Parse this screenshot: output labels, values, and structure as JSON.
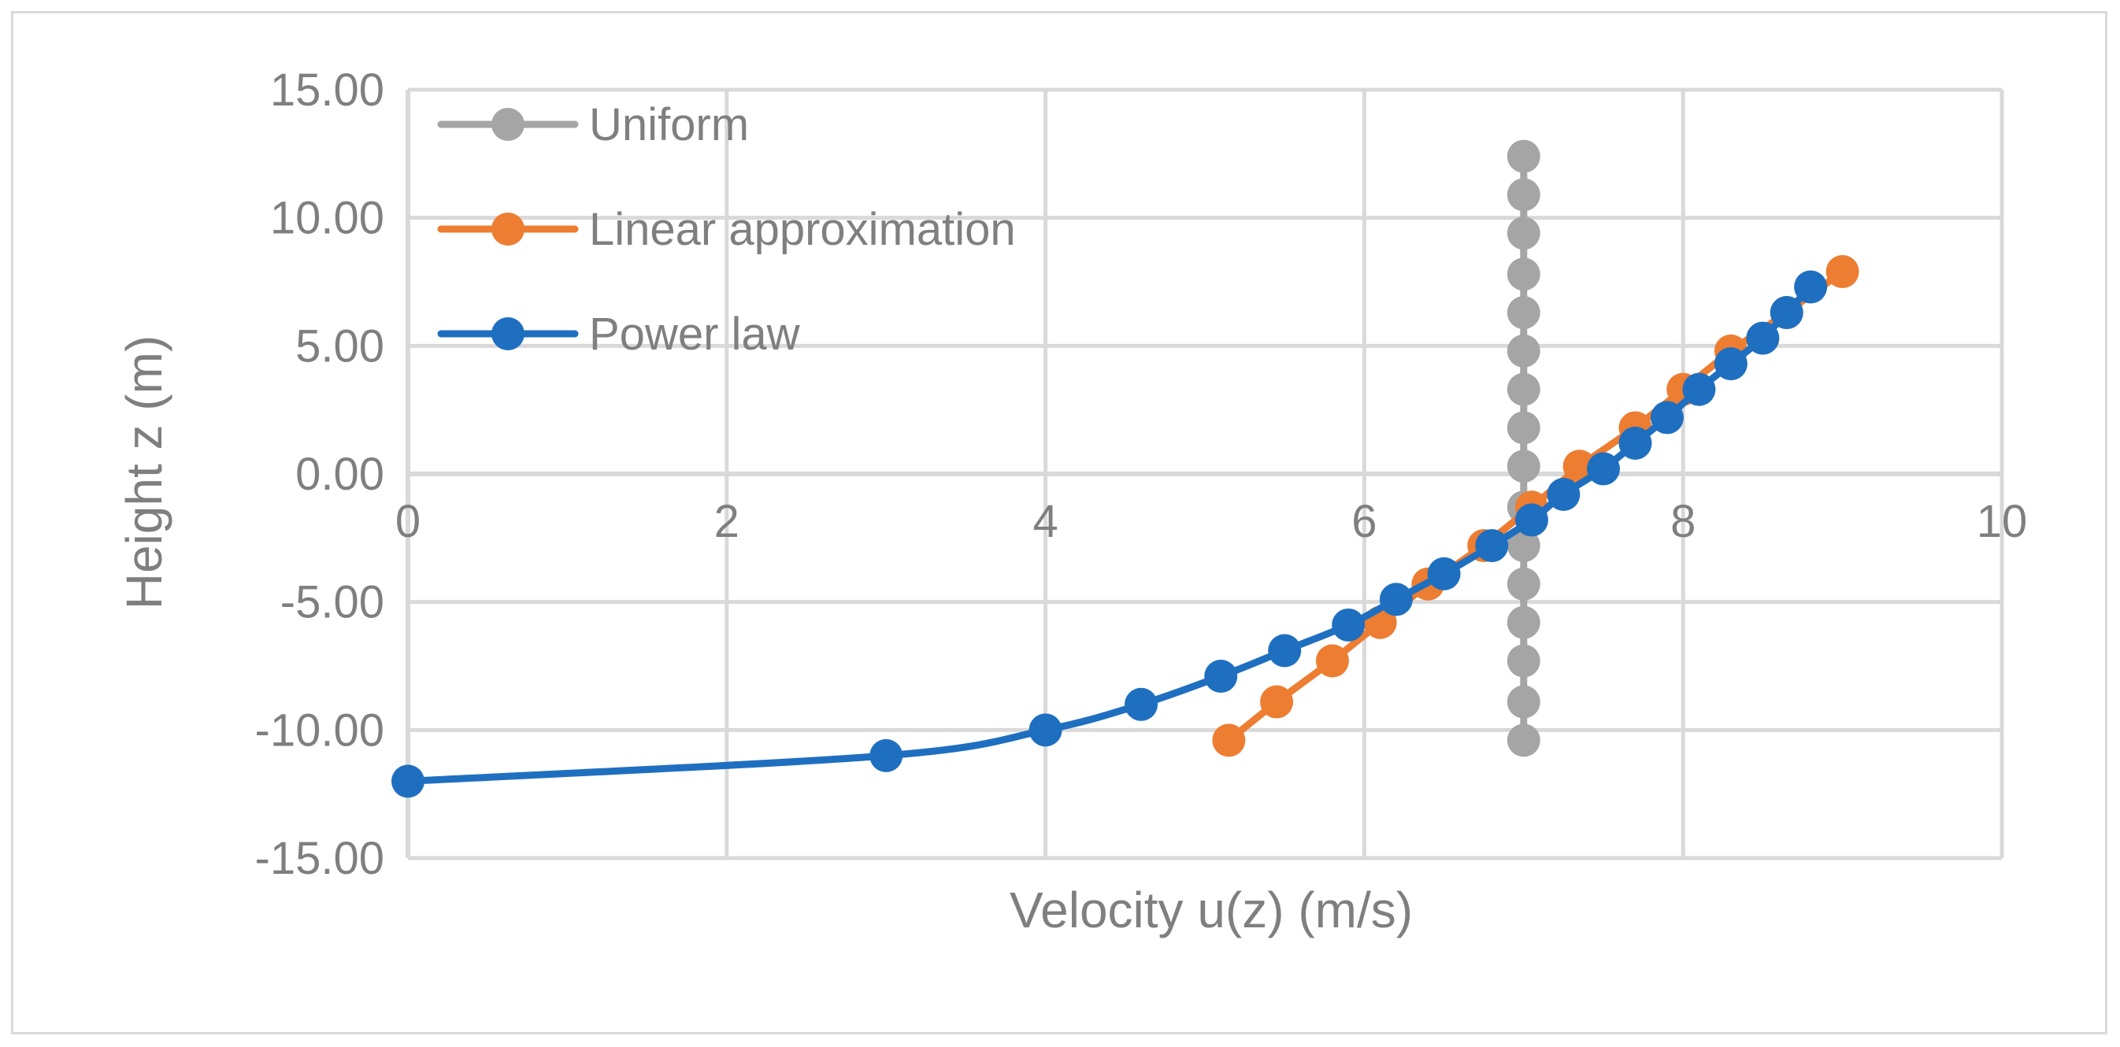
{
  "chart_data": {
    "type": "scatter",
    "title": "",
    "xlabel": "Velocity u(z) (m/s)",
    "ylabel": "Height z (m)",
    "xlim": [
      0,
      10
    ],
    "ylim": [
      -15,
      15
    ],
    "x_ticks": [
      "0",
      "2",
      "4",
      "6",
      "8",
      "10"
    ],
    "y_ticks": [
      "15.00",
      "10.00",
      "5.00",
      "0.00",
      "-5.00",
      "-10.00",
      "-15.00"
    ],
    "grid": true,
    "legend_position": "top-left",
    "series": [
      {
        "name": "Uniform",
        "color": "#a5a5a5",
        "smooth": false,
        "points": [
          [
            7.0,
            12.4
          ],
          [
            7.0,
            10.9
          ],
          [
            7.0,
            9.4
          ],
          [
            7.0,
            7.8
          ],
          [
            7.0,
            6.3
          ],
          [
            7.0,
            4.8
          ],
          [
            7.0,
            3.3
          ],
          [
            7.0,
            1.8
          ],
          [
            7.0,
            0.3
          ],
          [
            7.0,
            -1.3
          ],
          [
            7.0,
            -2.8
          ],
          [
            7.0,
            -4.3
          ],
          [
            7.0,
            -5.8
          ],
          [
            7.0,
            -7.3
          ],
          [
            7.0,
            -8.9
          ],
          [
            7.0,
            -10.4
          ]
        ]
      },
      {
        "name": "Linear approximation",
        "color": "#ed7d31",
        "smooth": false,
        "points": [
          [
            5.15,
            -10.4
          ],
          [
            5.45,
            -8.9
          ],
          [
            5.8,
            -7.3
          ],
          [
            6.1,
            -5.8
          ],
          [
            6.4,
            -4.3
          ],
          [
            6.75,
            -2.8
          ],
          [
            7.05,
            -1.3
          ],
          [
            7.35,
            0.3
          ],
          [
            7.7,
            1.8
          ],
          [
            8.0,
            3.3
          ],
          [
            8.3,
            4.8
          ],
          [
            8.65,
            6.3
          ],
          [
            9.0,
            7.9
          ]
        ]
      },
      {
        "name": "Power law",
        "color": "#1f6fc0",
        "smooth": true,
        "points": [
          [
            0.0,
            -12.0
          ],
          [
            3.0,
            -11.0
          ],
          [
            4.0,
            -10.0
          ],
          [
            4.6,
            -9.0
          ],
          [
            5.1,
            -7.9
          ],
          [
            5.5,
            -6.9
          ],
          [
            5.9,
            -5.9
          ],
          [
            6.2,
            -4.9
          ],
          [
            6.5,
            -3.9
          ],
          [
            6.8,
            -2.8
          ],
          [
            7.05,
            -1.8
          ],
          [
            7.25,
            -0.8
          ],
          [
            7.5,
            0.2
          ],
          [
            7.7,
            1.2
          ],
          [
            7.9,
            2.2
          ],
          [
            8.1,
            3.3
          ],
          [
            8.3,
            4.3
          ],
          [
            8.5,
            5.3
          ],
          [
            8.65,
            6.3
          ],
          [
            8.8,
            7.3
          ]
        ]
      }
    ]
  }
}
